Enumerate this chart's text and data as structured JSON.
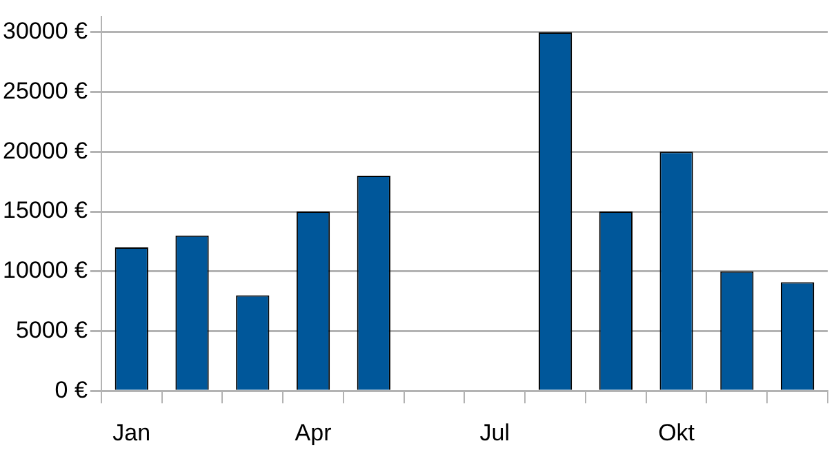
{
  "chart_data": {
    "type": "bar",
    "categories": [
      "Jan",
      null,
      null,
      "Apr",
      null,
      null,
      "Jul",
      null,
      null,
      "Okt",
      null,
      null
    ],
    "values": [
      12000,
      13000,
      8000,
      15000,
      18000,
      null,
      null,
      30000,
      15000,
      20000,
      10000,
      9100
    ],
    "color": "#00579a",
    "ylim": [
      0,
      31300
    ],
    "yticks": [
      {
        "value": 0,
        "label": "0 €"
      },
      {
        "value": 5000,
        "label": "5000 €"
      },
      {
        "value": 10000,
        "label": "10000 €"
      },
      {
        "value": 15000,
        "label": "15000 €"
      },
      {
        "value": 20000,
        "label": "20000 €"
      },
      {
        "value": 25000,
        "label": "25000 €"
      },
      {
        "value": 30000,
        "label": "30000 €"
      }
    ],
    "grid": "y",
    "legend": false
  }
}
